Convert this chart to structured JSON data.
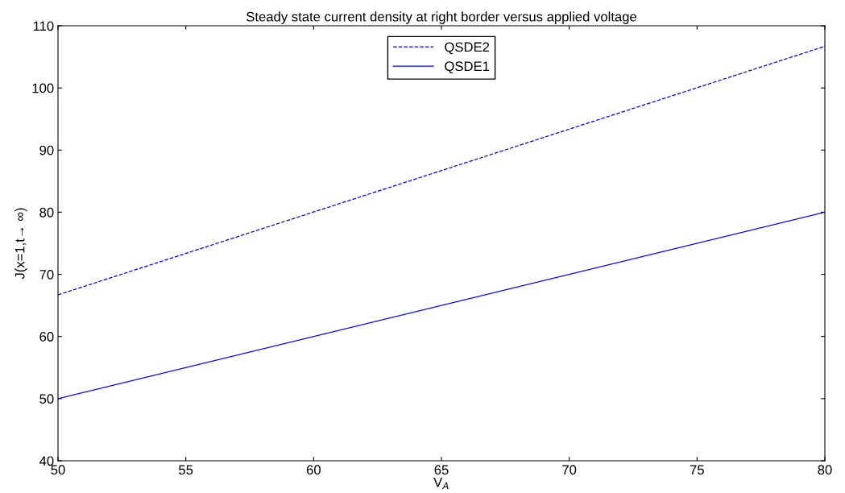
{
  "chart_data": {
    "type": "line",
    "title": "Steady state current density at right border versus applied voltage",
    "xlabel": "V$_{A}$",
    "ylabel": "J(x=1,t→ ∞)",
    "x": [
      50,
      80
    ],
    "series": [
      {
        "name": "QSDE2",
        "color": "#0000ff",
        "values": [
          66.7,
          106.7
        ],
        "line_style": "dashed"
      },
      {
        "name": "QSDE1",
        "color": "#0000ff",
        "values": [
          50,
          80
        ],
        "line_style": "solid"
      }
    ],
    "xlim": [
      50,
      80
    ],
    "xticks": [
      50,
      55,
      60,
      65,
      70,
      75,
      80
    ],
    "ylim": [
      40,
      110
    ],
    "yticks": [
      40,
      50,
      60,
      70,
      80,
      90,
      100,
      110
    ],
    "grid": false,
    "legend": "top",
    "marker": "none"
  }
}
